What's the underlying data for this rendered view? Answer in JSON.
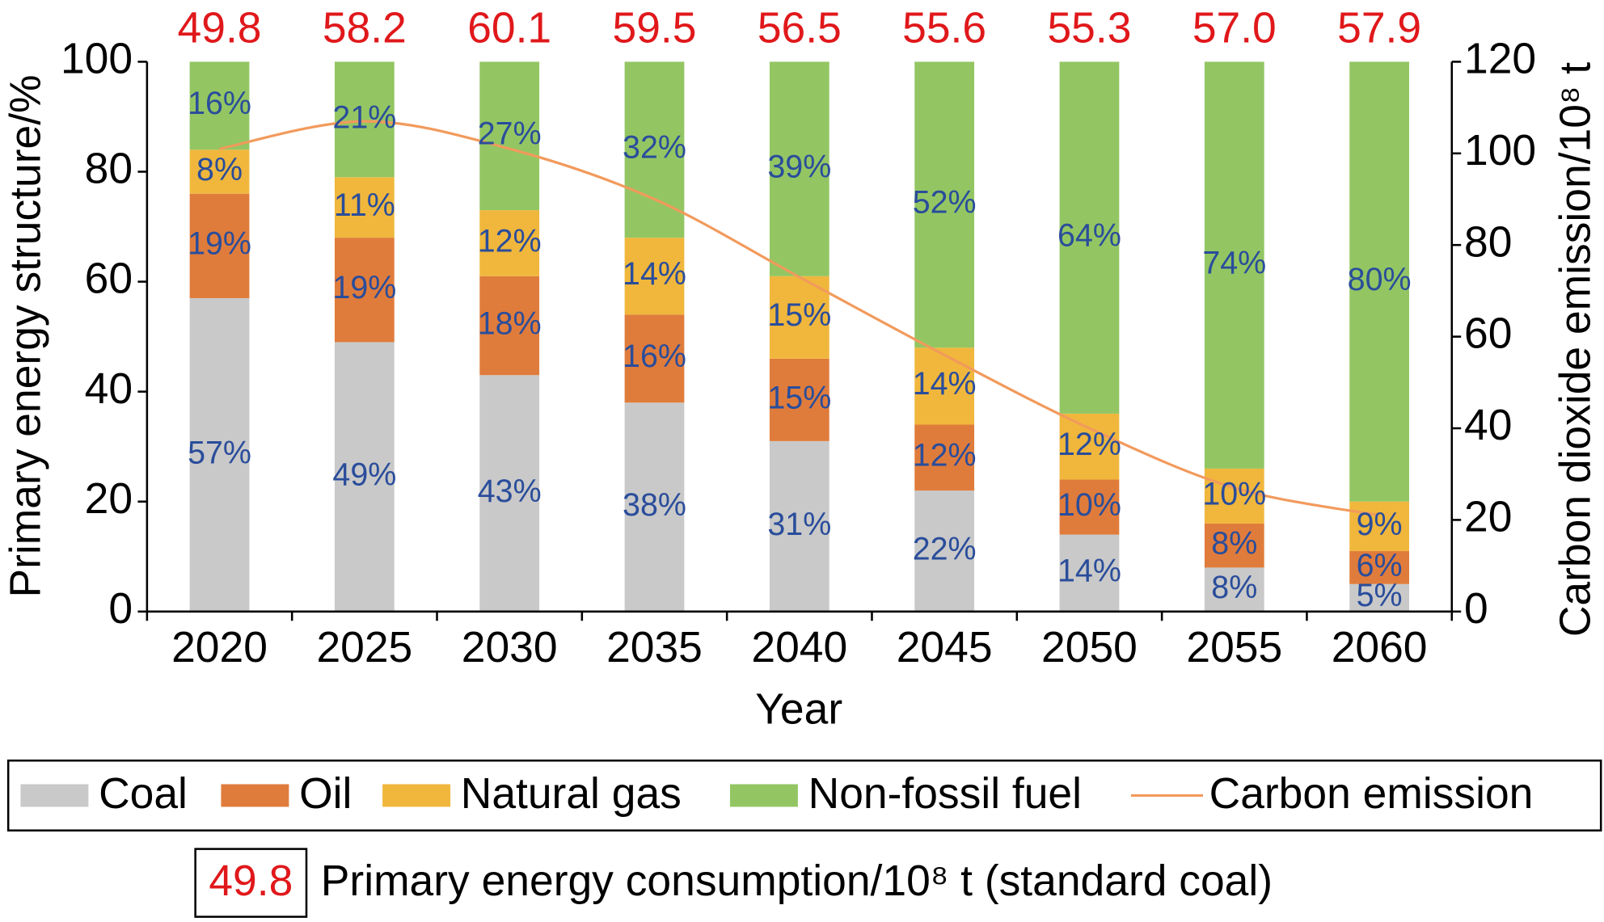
{
  "chart_data": {
    "type": "bar",
    "stacked": true,
    "y_label": "Primary energy structure/%",
    "y2_label": "Carbon dioxide emission/10⁸ t",
    "x_label": "Year",
    "categories": [
      "2020",
      "2025",
      "2030",
      "2035",
      "2040",
      "2045",
      "2050",
      "2055",
      "2060"
    ],
    "ylim": [
      0,
      100
    ],
    "yticks": [
      0,
      20,
      40,
      60,
      80,
      100
    ],
    "y2lim": [
      0,
      120
    ],
    "y2ticks": [
      0,
      20,
      40,
      60,
      80,
      100,
      120
    ],
    "series": [
      {
        "name": "Coal",
        "color": "#c9c9c9",
        "values": [
          57,
          49,
          43,
          38,
          31,
          22,
          14,
          8,
          5
        ],
        "value_labels": [
          "57%",
          "49%",
          "43%",
          "38%",
          "31%",
          "22%",
          "14%",
          "8%",
          "5%"
        ]
      },
      {
        "name": "Oil",
        "color": "#e07c3b",
        "values": [
          19,
          19,
          18,
          16,
          15,
          12,
          10,
          8,
          6
        ],
        "value_labels": [
          "19%",
          "19%",
          "18%",
          "16%",
          "15%",
          "12%",
          "10%",
          "8%",
          "6%"
        ]
      },
      {
        "name": "Natural gas",
        "color": "#f0b73c",
        "values": [
          8,
          11,
          12,
          14,
          15,
          14,
          12,
          10,
          9
        ],
        "value_labels": [
          "8%",
          "11%",
          "12%",
          "14%",
          "15%",
          "14%",
          "12%",
          "10%",
          "9%"
        ]
      },
      {
        "name": "Non-fossil fuel",
        "color": "#93c663",
        "values": [
          16,
          21,
          27,
          32,
          39,
          52,
          64,
          74,
          80
        ],
        "value_labels": [
          "16%",
          "21%",
          "27%",
          "32%",
          "39%",
          "52%",
          "64%",
          "74%",
          "80%"
        ]
      },
      {
        "name": "Carbon emission",
        "type": "line",
        "axis": "y2",
        "color": "#f29a5c",
        "values": [
          101,
          107,
          101,
          90,
          73,
          56,
          40,
          27,
          21
        ]
      }
    ],
    "consumption": {
      "name": "Primary energy consumption/10⁸ t (standard coal)",
      "color": "#e0181b",
      "values": [
        49.8,
        58.2,
        60.1,
        59.5,
        56.5,
        55.6,
        55.3,
        57.0,
        57.9
      ],
      "value_labels": [
        "49.8",
        "58.2",
        "60.1",
        "59.5",
        "56.5",
        "55.6",
        "55.3",
        "57.0",
        "57.9"
      ]
    }
  }
}
